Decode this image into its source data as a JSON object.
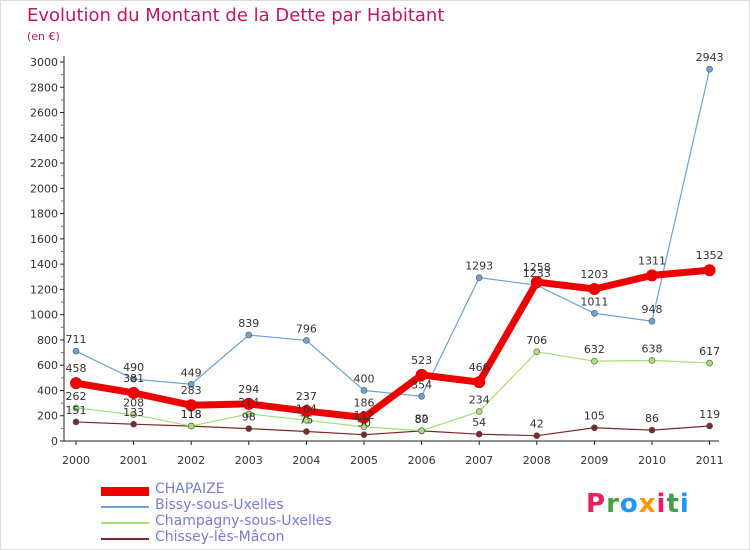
{
  "title": "Evolution du Montant de la Dette par Habitant",
  "unit": "(en €)",
  "logo": {
    "letters": [
      "P",
      "r",
      "o",
      "x",
      "i",
      "t",
      "i"
    ],
    "colors": [
      "#e91e63",
      "#43a047",
      "#2196f3",
      "#ff9800",
      "#e91e63",
      "#43a047",
      "#2196f3"
    ]
  },
  "chart_data": {
    "type": "line",
    "title": "Evolution du Montant de la Dette par Habitant",
    "ylabel": "(en €)",
    "xlabel": "",
    "x": [
      "2000",
      "2001",
      "2002",
      "2003",
      "2004",
      "2005",
      "2006",
      "2007",
      "2008",
      "2009",
      "2010",
      "2011"
    ],
    "ylim": [
      0,
      3000
    ],
    "yticks": [
      0,
      200,
      400,
      600,
      800,
      1000,
      1200,
      1400,
      1600,
      1800,
      2000,
      2200,
      2400,
      2600,
      2800,
      3000
    ],
    "grid": false,
    "legend_position": "bottom-left",
    "series": [
      {
        "name": "CHAPAIZE",
        "color": "#ee0000",
        "values": [
          458,
          381,
          283,
          294,
          237,
          186,
          523,
          466,
          1258,
          1203,
          1311,
          1352
        ]
      },
      {
        "name": "Bissy-sous-Uxelles",
        "color": "#6aa3d5",
        "values": [
          711,
          490,
          449,
          839,
          796,
          400,
          354,
          1293,
          1233,
          1011,
          948,
          2943
        ]
      },
      {
        "name": "Champagny-sous-Uxelles",
        "color": "#a5e07a",
        "values": [
          262,
          208,
          118,
          214,
          164,
          112,
          82,
          234,
          706,
          632,
          638,
          617
        ]
      },
      {
        "name": "Chissey-lès-Mâcon",
        "color": "#7a2a2a",
        "values": [
          151,
          133,
          118,
          98,
          75,
          50,
          80,
          54,
          42,
          105,
          86,
          119
        ]
      }
    ]
  }
}
